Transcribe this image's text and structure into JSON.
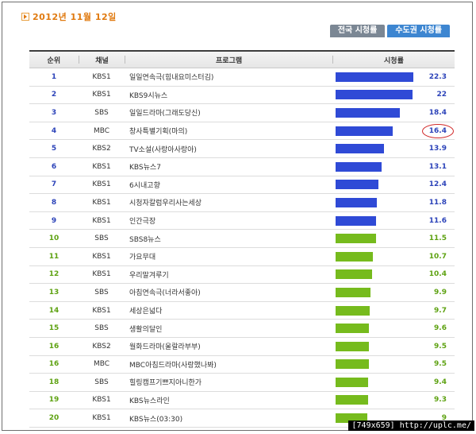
{
  "date": "2012년 11월 12일",
  "tabs": [
    {
      "label": "전국 시청률",
      "active": false
    },
    {
      "label": "수도권 시청률",
      "active": true
    }
  ],
  "headers": {
    "rank": "순위",
    "channel": "채널",
    "program": "프로그램",
    "rating": "시청률"
  },
  "colors": {
    "top_bar": "#2f4ad6",
    "other_bar": "#76bb1d",
    "highlight_circle": "#d12a2a"
  },
  "rows": [
    {
      "rank": "1",
      "channel": "KBS1",
      "program": "일일연속극(힘내요미스터김)",
      "rating": "22.3",
      "value": 22.3,
      "color": "blue"
    },
    {
      "rank": "2",
      "channel": "KBS1",
      "program": "KBS9시뉴스",
      "rating": "22",
      "value": 22,
      "color": "blue"
    },
    {
      "rank": "3",
      "channel": "SBS",
      "program": "일일드라마(그래도당신)",
      "rating": "18.4",
      "value": 18.4,
      "color": "blue"
    },
    {
      "rank": "4",
      "channel": "MBC",
      "program": "창사특별기획(마의)",
      "rating": "16.4",
      "value": 16.4,
      "color": "blue",
      "highlight": true
    },
    {
      "rank": "5",
      "channel": "KBS2",
      "program": "TV소설(사랑아사랑아)",
      "rating": "13.9",
      "value": 13.9,
      "color": "blue"
    },
    {
      "rank": "6",
      "channel": "KBS1",
      "program": "KBS뉴스7",
      "rating": "13.1",
      "value": 13.1,
      "color": "blue"
    },
    {
      "rank": "7",
      "channel": "KBS1",
      "program": "6시내고향",
      "rating": "12.4",
      "value": 12.4,
      "color": "blue"
    },
    {
      "rank": "8",
      "channel": "KBS1",
      "program": "시청자칼럼우리사는세상",
      "rating": "11.8",
      "value": 11.8,
      "color": "blue"
    },
    {
      "rank": "9",
      "channel": "KBS1",
      "program": "인간극장",
      "rating": "11.6",
      "value": 11.6,
      "color": "blue"
    },
    {
      "rank": "10",
      "channel": "SBS",
      "program": "SBS8뉴스",
      "rating": "11.5",
      "value": 11.5,
      "color": "green"
    },
    {
      "rank": "11",
      "channel": "KBS1",
      "program": "가요무대",
      "rating": "10.7",
      "value": 10.7,
      "color": "green"
    },
    {
      "rank": "12",
      "channel": "KBS1",
      "program": "우리말겨루기",
      "rating": "10.4",
      "value": 10.4,
      "color": "green"
    },
    {
      "rank": "13",
      "channel": "SBS",
      "program": "아침연속극(너라서좋아)",
      "rating": "9.9",
      "value": 9.9,
      "color": "green"
    },
    {
      "rank": "14",
      "channel": "KBS1",
      "program": "세상은넓다",
      "rating": "9.7",
      "value": 9.7,
      "color": "green"
    },
    {
      "rank": "15",
      "channel": "SBS",
      "program": "생활의달인",
      "rating": "9.6",
      "value": 9.6,
      "color": "green"
    },
    {
      "rank": "16",
      "channel": "KBS2",
      "program": "월화드라마(울랄라부부)",
      "rating": "9.5",
      "value": 9.5,
      "color": "green"
    },
    {
      "rank": "16",
      "channel": "MBC",
      "program": "MBC아침드라마(사랑했나봐)",
      "rating": "9.5",
      "value": 9.5,
      "color": "green"
    },
    {
      "rank": "18",
      "channel": "SBS",
      "program": "힐링캠프기쁘지아니한가",
      "rating": "9.4",
      "value": 9.4,
      "color": "green"
    },
    {
      "rank": "19",
      "channel": "KBS1",
      "program": "KBS뉴스라인",
      "rating": "9.3",
      "value": 9.3,
      "color": "green"
    },
    {
      "rank": "20",
      "channel": "KBS1",
      "program": "KBS뉴스(03:30)",
      "rating": "9",
      "value": 9,
      "color": "green"
    }
  ],
  "watermark": "[749x659] http://uplc.me/"
}
